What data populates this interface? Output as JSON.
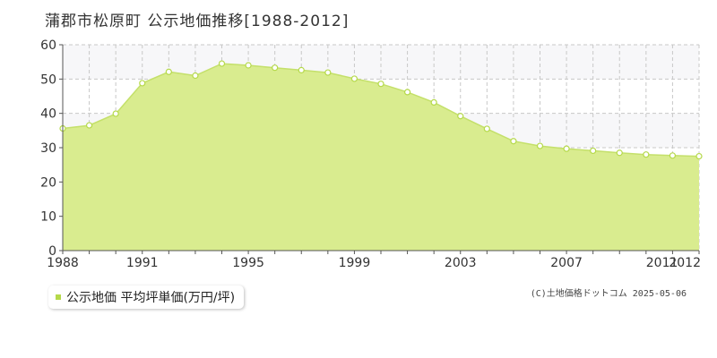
{
  "title": "蒲郡市松原町 公示地価推移[1988-2012]",
  "legend": {
    "label": "公示地価 平均坪単価(万円/坪)"
  },
  "copyright": "(C)土地価格ドットコム 2025-05-06",
  "colors": {
    "fill": "#d9ec8f",
    "line": "#c4e06a",
    "marker": "#b5d94a",
    "grid": "#c8c8c8",
    "band": "#f7f7f9",
    "axis": "#555555"
  },
  "chart_data": {
    "type": "area",
    "x": [
      1988,
      1989,
      1990,
      1991,
      1992,
      1993,
      1994,
      1995,
      1996,
      1997,
      1998,
      1999,
      2000,
      2001,
      2002,
      2003,
      2004,
      2005,
      2006,
      2007,
      2008,
      2009,
      2010,
      2011,
      2012
    ],
    "series": [
      {
        "values": [
          35.6,
          36.5,
          39.9,
          48.8,
          52.1,
          51.0,
          54.5,
          54.0,
          53.3,
          52.6,
          51.9,
          50.1,
          48.6,
          46.2,
          43.2,
          39.2,
          35.5,
          31.9,
          30.5,
          29.7,
          29.1,
          28.5,
          28.0,
          27.7,
          27.5
        ]
      }
    ],
    "xticks": [
      "1988",
      "1991",
      "1995",
      "1999",
      "2003",
      "2007",
      "2011",
      "2012"
    ],
    "ylim": [
      0,
      60
    ],
    "yticks": [
      0,
      10,
      20,
      30,
      40,
      50,
      60
    ],
    "grid": true,
    "legend_position": "bottom-left"
  }
}
